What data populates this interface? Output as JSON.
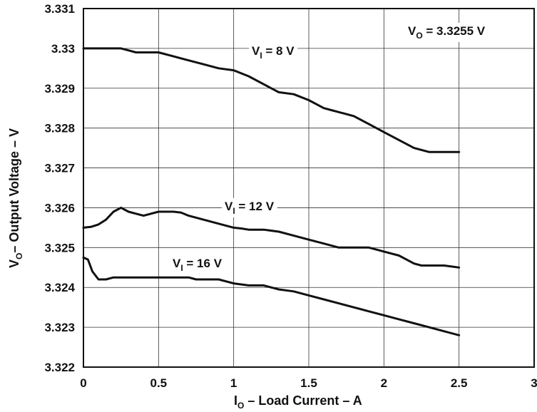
{
  "chart_data": {
    "type": "line",
    "xlabel": {
      "main": "I",
      "sub": "O",
      "rest": " – Load Current – A"
    },
    "ylabel": {
      "main": "V",
      "sub": "O",
      "rest": "– Output Voltage – V"
    },
    "annotation": {
      "main": "V",
      "sub": "O",
      "rest": " = 3.3255 V"
    },
    "xlim": [
      0,
      3
    ],
    "ylim": [
      3.322,
      3.331
    ],
    "x_ticks": [
      0,
      0.5,
      1,
      1.5,
      2,
      2.5,
      3
    ],
    "x_tick_labels": [
      "0",
      "0.5",
      "1",
      "1.5",
      "2",
      "2.5",
      "3"
    ],
    "y_ticks": [
      3.322,
      3.323,
      3.324,
      3.325,
      3.326,
      3.327,
      3.328,
      3.329,
      3.33,
      3.331
    ],
    "y_tick_labels": [
      "3.322",
      "3.323",
      "3.324",
      "3.325",
      "3.326",
      "3.327",
      "3.328",
      "3.329",
      "3.33",
      "3.331"
    ],
    "grid": true,
    "series": [
      {
        "name": "V_I = 8 V",
        "label": {
          "main": "V",
          "sub": "I",
          "rest": " = 8 V"
        },
        "x": [
          0,
          0.1,
          0.2,
          0.25,
          0.3,
          0.35,
          0.4,
          0.5,
          0.6,
          0.7,
          0.8,
          0.9,
          1.0,
          1.1,
          1.2,
          1.3,
          1.4,
          1.5,
          1.55,
          1.6,
          1.65,
          1.7,
          1.75,
          1.8,
          1.9,
          2.0,
          2.1,
          2.2,
          2.3,
          2.4,
          2.5
        ],
        "y": [
          3.33,
          3.33,
          3.33,
          3.33,
          3.32995,
          3.3299,
          3.3299,
          3.3299,
          3.3298,
          3.3297,
          3.3296,
          3.3295,
          3.32945,
          3.3293,
          3.3291,
          3.3289,
          3.32885,
          3.3287,
          3.3286,
          3.3285,
          3.32845,
          3.3284,
          3.32835,
          3.3283,
          3.3281,
          3.3279,
          3.3277,
          3.3275,
          3.3274,
          3.3274,
          3.3274
        ]
      },
      {
        "name": "V_I = 12 V",
        "label": {
          "main": "V",
          "sub": "I",
          "rest": " = 12 V"
        },
        "x": [
          0,
          0.05,
          0.1,
          0.15,
          0.2,
          0.25,
          0.3,
          0.35,
          0.4,
          0.5,
          0.6,
          0.65,
          0.7,
          0.8,
          0.9,
          1.0,
          1.05,
          1.1,
          1.2,
          1.3,
          1.4,
          1.5,
          1.6,
          1.7,
          1.8,
          1.9,
          2.0,
          2.1,
          2.15,
          2.2,
          2.25,
          2.3,
          2.4,
          2.5
        ],
        "y": [
          3.3255,
          3.32552,
          3.32558,
          3.3257,
          3.3259,
          3.326,
          3.3259,
          3.32585,
          3.3258,
          3.3259,
          3.3259,
          3.32588,
          3.3258,
          3.3257,
          3.3256,
          3.3255,
          3.32548,
          3.32545,
          3.32545,
          3.3254,
          3.3253,
          3.3252,
          3.3251,
          3.325,
          3.325,
          3.325,
          3.3249,
          3.3248,
          3.3247,
          3.3246,
          3.32455,
          3.32455,
          3.32455,
          3.3245
        ]
      },
      {
        "name": "V_I = 16 V",
        "label": {
          "main": "V",
          "sub": "I",
          "rest": " = 16 V"
        },
        "x": [
          0,
          0.03,
          0.06,
          0.1,
          0.15,
          0.2,
          0.3,
          0.4,
          0.5,
          0.6,
          0.7,
          0.75,
          0.8,
          0.9,
          1.0,
          1.1,
          1.2,
          1.3,
          1.4,
          1.5,
          1.6,
          1.7,
          1.8,
          1.9,
          2.0,
          2.1,
          2.2,
          2.3,
          2.4,
          2.5
        ],
        "y": [
          3.32475,
          3.3247,
          3.3244,
          3.3242,
          3.3242,
          3.32425,
          3.32425,
          3.32425,
          3.32425,
          3.32425,
          3.32425,
          3.3242,
          3.3242,
          3.3242,
          3.3241,
          3.32405,
          3.32405,
          3.32395,
          3.3239,
          3.3238,
          3.3237,
          3.3236,
          3.3235,
          3.3234,
          3.3233,
          3.3232,
          3.3231,
          3.323,
          3.3229,
          3.3228
        ]
      }
    ]
  }
}
